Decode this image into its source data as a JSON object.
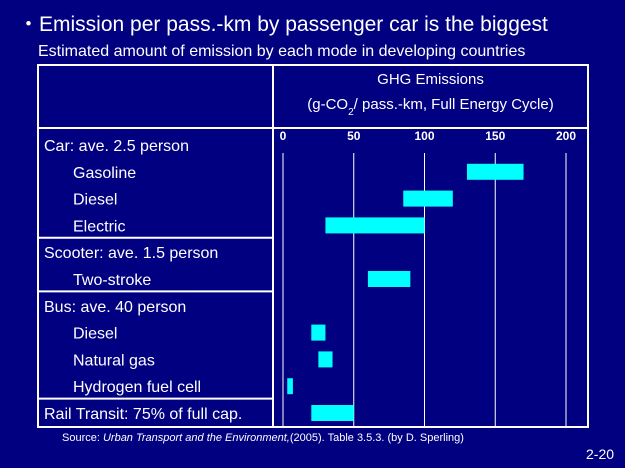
{
  "heading": "・Emission per pass.-km by passenger car is the biggest",
  "subheading": "Estimated amount of emission by each mode in developing countries",
  "source": {
    "prefix": "Source: ",
    "title": "Urban Transport and the Environment,",
    "suffix": "(2005). Table 3.5.3. (by D. Sperling)"
  },
  "page_number": "2-20",
  "colors": {
    "background": "#000080",
    "bar": "#00ffff",
    "lines": "#ffffff"
  },
  "chart_data": {
    "type": "bar",
    "orientation": "horizontal-range",
    "title": "GHG Emissions",
    "unit_label": {
      "before_sub": "(g-CO",
      "sub": "2",
      "after_sub": "/ pass.-km, Full Energy Cycle)"
    },
    "xlim": [
      0,
      200
    ],
    "ticks": [
      0,
      50,
      100,
      150,
      200
    ],
    "grid": true,
    "groups": [
      {
        "label": "Car: ave. 2.5 person",
        "items": [
          {
            "label": "Gasoline",
            "range": [
              130,
              170
            ]
          },
          {
            "label": "Diesel",
            "range": [
              85,
              120
            ]
          },
          {
            "label": "Electric",
            "range": [
              30,
              100
            ]
          }
        ]
      },
      {
        "label": "Scooter: ave. 1.5 person",
        "items": [
          {
            "label": "Two-stroke",
            "range": [
              60,
              90
            ]
          }
        ]
      },
      {
        "label": "Bus: ave. 40 person",
        "items": [
          {
            "label": "Diesel",
            "range": [
              20,
              30
            ]
          },
          {
            "label": "Natural gas",
            "range": [
              25,
              35
            ]
          },
          {
            "label": "Hydrogen fuel cell",
            "range": [
              3,
              7
            ]
          }
        ]
      },
      {
        "label": "Rail Transit: 75% of full cap.",
        "range": [
          20,
          50
        ]
      }
    ]
  }
}
